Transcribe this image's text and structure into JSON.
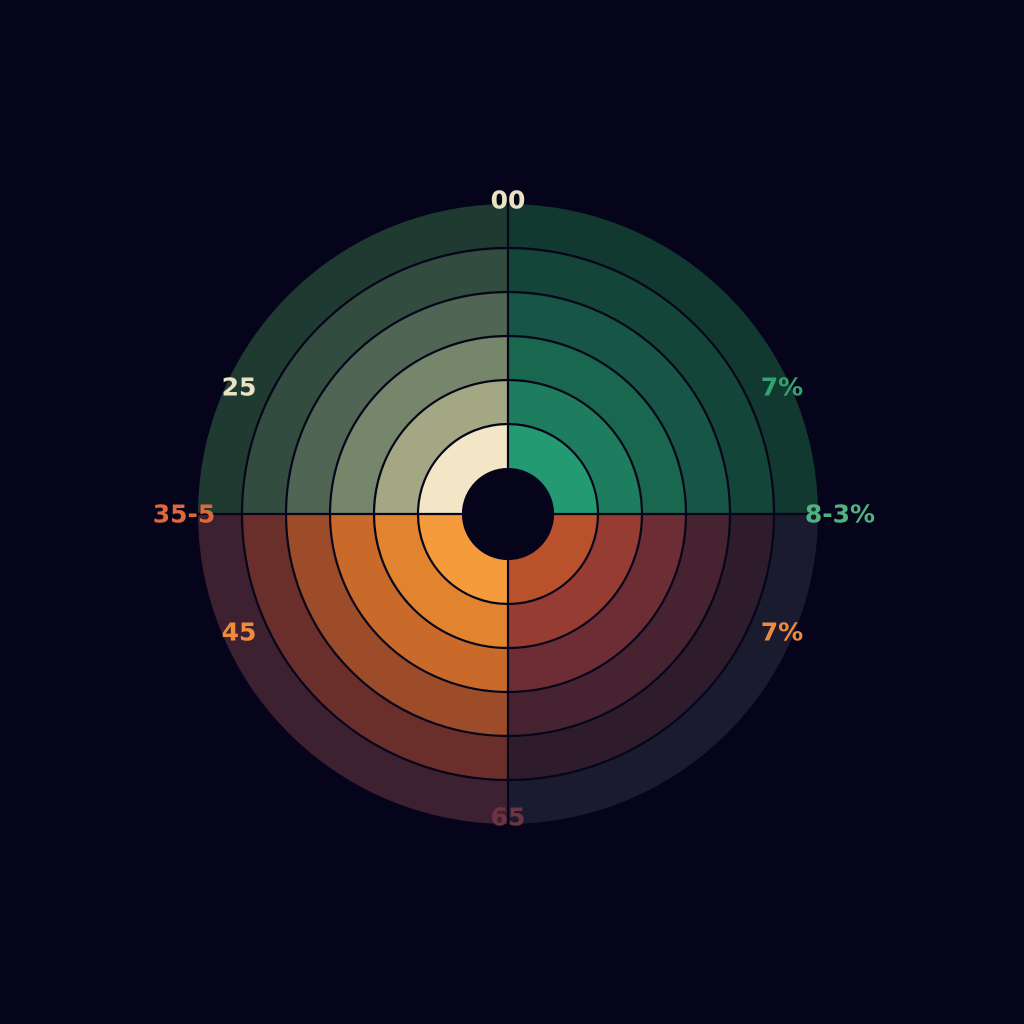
{
  "chart_data": {
    "type": "pie",
    "title": "",
    "rings": 6,
    "quadrants": [
      {
        "position": "upper-left",
        "colors": [
          "#f2e6c6",
          "#a3a783",
          "#75866a",
          "#506554",
          "#324c40",
          "#1e3a31"
        ]
      },
      {
        "position": "upper-right",
        "colors": [
          "#249a73",
          "#1e7d5e",
          "#1a6750",
          "#175546",
          "#134639",
          "#12392f"
        ]
      },
      {
        "position": "lower-right",
        "colors": [
          "#b9522c",
          "#963c32",
          "#6c2e34",
          "#472331",
          "#2e1c2d",
          "#1b1b2f"
        ]
      },
      {
        "position": "lower-left",
        "colors": [
          "#f59b3c",
          "#e2832f",
          "#c96a2b",
          "#9d4c29",
          "#6a2f2a",
          "#3e2131"
        ]
      }
    ],
    "center_color": "#05041a",
    "labels": {
      "top": {
        "text": "00",
        "color": "#e9e3c4"
      },
      "upper_left": {
        "text": "25",
        "color": "#e9e3c4"
      },
      "upper_right": {
        "text": "7%",
        "color": "#33a36f"
      },
      "left": {
        "text": "35-5",
        "color": "#e0663c"
      },
      "right": {
        "text": "8-3%",
        "color": "#4fb37f"
      },
      "lower_left": {
        "text": "45",
        "color": "#f08a3c"
      },
      "lower_right": {
        "text": "7%",
        "color": "#f08a3c"
      },
      "bottom": {
        "text": "65",
        "color": "#6e3340"
      }
    }
  }
}
